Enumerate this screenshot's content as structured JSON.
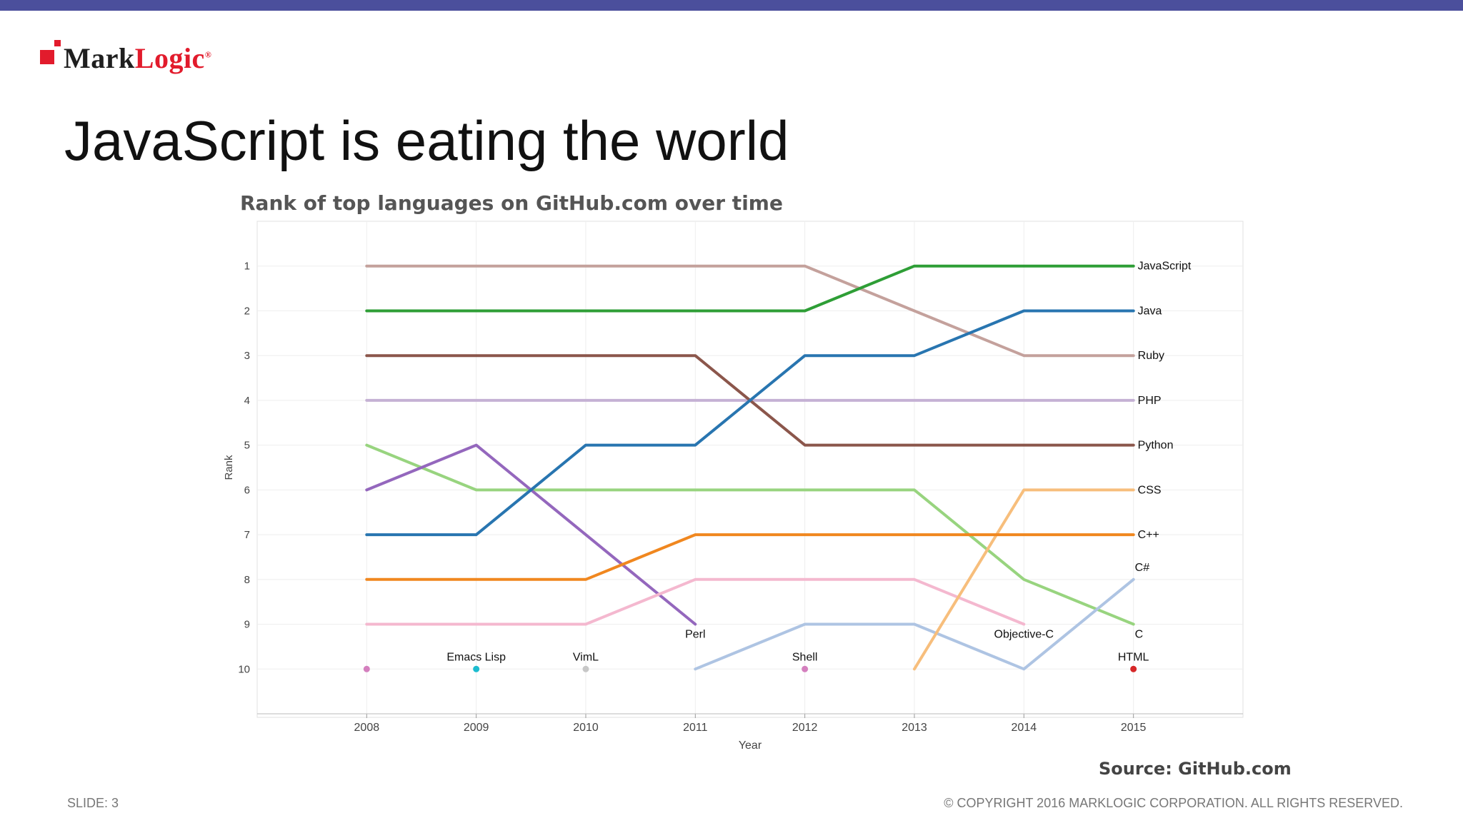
{
  "brand": {
    "logo_text_part1": "Mark",
    "logo_text_part2": "Logic",
    "registered_mark": "®",
    "accent_color": "#e21b2c",
    "top_bar_color": "#4b4f9c"
  },
  "slide": {
    "title": "JavaScript is eating the world",
    "slide_number": "SLIDE: 3",
    "copyright": "© COPYRIGHT 2016 MARKLOGIC CORPORATION. ALL RIGHTS RESERVED.",
    "source": "Source: GitHub.com"
  },
  "chart_data": {
    "type": "line",
    "title": "Rank of top languages on GitHub.com over time",
    "xlabel": "Year",
    "ylabel": "Rank",
    "x": [
      2008,
      2009,
      2010,
      2011,
      2012,
      2013,
      2014,
      2015
    ],
    "xlim": [
      2007,
      2016
    ],
    "ylim": [
      0,
      11
    ],
    "y_reversed": true,
    "y_ticks": [
      1,
      2,
      3,
      4,
      5,
      6,
      7,
      8,
      9,
      10
    ],
    "grid": true,
    "series": [
      {
        "name": "Ruby",
        "color": "#c4a19c",
        "values": [
          1,
          1,
          1,
          1,
          1,
          2,
          3,
          3
        ]
      },
      {
        "name": "PHP",
        "color": "#c5b1d4",
        "values": [
          4,
          4,
          4,
          4,
          4,
          4,
          4,
          4
        ]
      },
      {
        "name": "C",
        "color": "#98d47f",
        "values": [
          5,
          6,
          6,
          6,
          6,
          6,
          8,
          9
        ]
      },
      {
        "name": "Perl",
        "color": "#9467bd",
        "values": [
          6,
          5,
          7,
          9,
          null,
          null,
          null,
          null
        ]
      },
      {
        "name": "Objective-C",
        "color": "#f4b8cf",
        "values": [
          9,
          9,
          9,
          8,
          8,
          8,
          9,
          null
        ]
      },
      {
        "name": "C#",
        "color": "#aec4e3",
        "values": [
          null,
          null,
          null,
          10,
          9,
          9,
          10,
          8
        ]
      },
      {
        "name": "CSS",
        "color": "#f7be7c",
        "values": [
          null,
          null,
          null,
          null,
          null,
          10,
          6,
          6
        ]
      },
      {
        "name": "C++",
        "color": "#f0871f",
        "values": [
          8,
          8,
          8,
          7,
          7,
          7,
          7,
          7
        ]
      },
      {
        "name": "Python",
        "color": "#8b564b",
        "values": [
          3,
          3,
          3,
          3,
          5,
          5,
          5,
          5
        ]
      },
      {
        "name": "Java",
        "color": "#2875b0",
        "values": [
          7,
          7,
          5,
          5,
          3,
          3,
          2,
          2
        ]
      },
      {
        "name": "JavaScript",
        "color": "#2e9e36",
        "values": [
          2,
          2,
          2,
          2,
          2,
          1,
          1,
          1
        ]
      }
    ],
    "points": [
      {
        "name": "",
        "x": 2008,
        "y": 10,
        "color": "#d47fbe"
      },
      {
        "name": "Emacs Lisp",
        "x": 2009,
        "y": 10,
        "color": "#1cbccf"
      },
      {
        "name": "VimL",
        "x": 2010,
        "y": 10,
        "color": "#c7c7c7"
      },
      {
        "name": "Shell",
        "x": 2012,
        "y": 10,
        "color": "#d47fbe"
      },
      {
        "name": "HTML",
        "x": 2015,
        "y": 10,
        "color": "#d62728"
      }
    ],
    "annotations": [
      {
        "text": "JavaScript",
        "x": 2015,
        "y": 1
      },
      {
        "text": "Java",
        "x": 2015,
        "y": 2
      },
      {
        "text": "Ruby",
        "x": 2015,
        "y": 3
      },
      {
        "text": "PHP",
        "x": 2015,
        "y": 4
      },
      {
        "text": "Python",
        "x": 2015,
        "y": 5
      },
      {
        "text": "CSS",
        "x": 2015,
        "y": 6
      },
      {
        "text": "C++",
        "x": 2015,
        "y": 7
      },
      {
        "text": "C#",
        "x": 2015,
        "y": 8
      },
      {
        "text": "C",
        "x": 2015,
        "y": 9
      },
      {
        "text": "Perl",
        "x": 2011,
        "y": 9
      },
      {
        "text": "Objective-C",
        "x": 2014,
        "y": 9
      }
    ]
  }
}
